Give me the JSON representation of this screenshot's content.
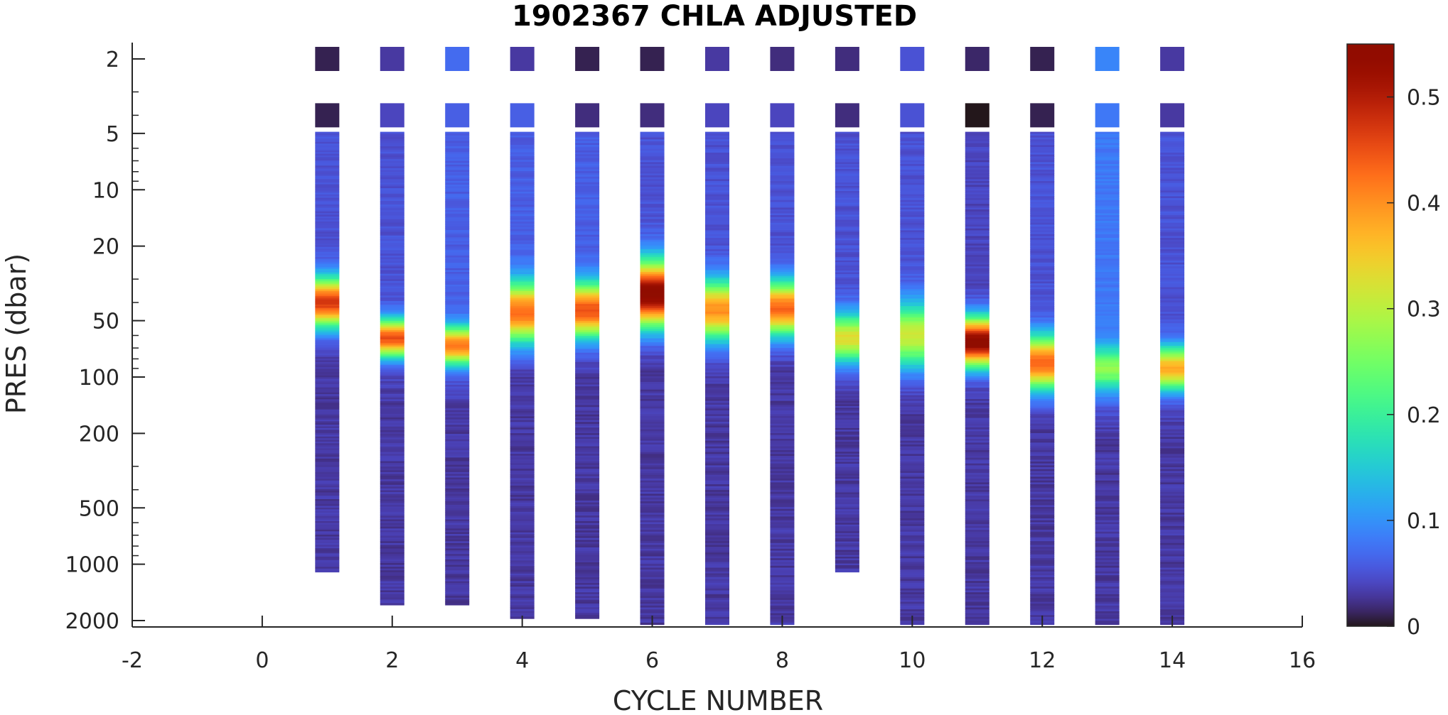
{
  "chart_data": {
    "type": "heatmap",
    "title": "1902367  CHLA ADJUSTED",
    "xlabel": "CYCLE NUMBER",
    "ylabel": "PRES (dbar)",
    "xlim": [
      -2,
      16
    ],
    "xticks": [
      -2,
      0,
      2,
      4,
      6,
      8,
      10,
      12,
      14,
      16
    ],
    "y_scale": "log",
    "ylim": [
      1.6,
      2200
    ],
    "y_reversed": true,
    "yticks": [
      2,
      5,
      10,
      20,
      50,
      100,
      200,
      500,
      1000,
      2000
    ],
    "colorbar": {
      "colormap": "turbo",
      "clim": [
        0,
        0.55
      ],
      "ticks": [
        0,
        0.1,
        0.2,
        0.3,
        0.4,
        0.5
      ],
      "tick_labels": [
        "0",
        "0.1",
        "0.2",
        "0.3",
        "0.4",
        "0.5"
      ]
    },
    "profiles": [
      {
        "cycle": 1,
        "max_pres": 1100,
        "top_values": [
          0.01,
          0.01
        ],
        "peak_pres": 40,
        "peak_value": 0.47,
        "peak_width": 0.09,
        "background": 0.05,
        "deep_value": 0.03
      },
      {
        "cycle": 2,
        "max_pres": 1650,
        "top_values": [
          0.03,
          0.04
        ],
        "peak_pres": 62,
        "peak_value": 0.45,
        "peak_width": 0.07,
        "background": 0.05,
        "deep_value": 0.03
      },
      {
        "cycle": 3,
        "max_pres": 1650,
        "top_values": [
          0.07,
          0.06
        ],
        "peak_pres": 68,
        "peak_value": 0.42,
        "peak_width": 0.07,
        "background": 0.06,
        "deep_value": 0.03
      },
      {
        "cycle": 4,
        "max_pres": 1950,
        "top_values": [
          0.03,
          0.06
        ],
        "peak_pres": 45,
        "peak_value": 0.43,
        "peak_width": 0.11,
        "background": 0.06,
        "deep_value": 0.03
      },
      {
        "cycle": 5,
        "max_pres": 1950,
        "top_values": [
          0.01,
          0.02
        ],
        "peak_pres": 44,
        "peak_value": 0.45,
        "peak_width": 0.1,
        "background": 0.06,
        "deep_value": 0.03
      },
      {
        "cycle": 6,
        "max_pres": 2100,
        "top_values": [
          0.01,
          0.02
        ],
        "peak_pres": 36,
        "peak_value": 0.55,
        "peak_width": 0.12,
        "background": 0.05,
        "deep_value": 0.03
      },
      {
        "cycle": 7,
        "max_pres": 2100,
        "top_values": [
          0.03,
          0.04
        ],
        "peak_pres": 44,
        "peak_value": 0.4,
        "peak_width": 0.11,
        "background": 0.05,
        "deep_value": 0.03
      },
      {
        "cycle": 8,
        "max_pres": 2100,
        "top_values": [
          0.02,
          0.04
        ],
        "peak_pres": 43,
        "peak_value": 0.43,
        "peak_width": 0.1,
        "background": 0.05,
        "deep_value": 0.03
      },
      {
        "cycle": 9,
        "max_pres": 1100,
        "top_values": [
          0.02,
          0.02
        ],
        "peak_pres": 62,
        "peak_value": 0.33,
        "peak_width": 0.09,
        "background": 0.05,
        "deep_value": 0.03
      },
      {
        "cycle": 10,
        "max_pres": 2100,
        "top_values": [
          0.05,
          0.05
        ],
        "peak_pres": 60,
        "peak_value": 0.31,
        "peak_width": 0.12,
        "background": 0.05,
        "deep_value": 0.03
      },
      {
        "cycle": 11,
        "max_pres": 2100,
        "top_values": [
          0.015,
          0.0
        ],
        "peak_pres": 65,
        "peak_value": 0.55,
        "peak_width": 0.09,
        "background": 0.04,
        "deep_value": 0.03
      },
      {
        "cycle": 12,
        "max_pres": 2100,
        "top_values": [
          0.01,
          0.01
        ],
        "peak_pres": 84,
        "peak_value": 0.43,
        "peak_width": 0.1,
        "background": 0.05,
        "deep_value": 0.03
      },
      {
        "cycle": 13,
        "max_pres": 2100,
        "top_values": [
          0.09,
          0.08
        ],
        "peak_pres": 90,
        "peak_value": 0.27,
        "peak_width": 0.08,
        "background": 0.08,
        "deep_value": 0.03
      },
      {
        "cycle": 14,
        "max_pres": 2100,
        "top_values": [
          0.03,
          0.03
        ],
        "peak_pres": 90,
        "peak_value": 0.38,
        "peak_width": 0.08,
        "background": 0.05,
        "deep_value": 0.03
      }
    ],
    "top_sample_pres": [
      2,
      4
    ]
  }
}
